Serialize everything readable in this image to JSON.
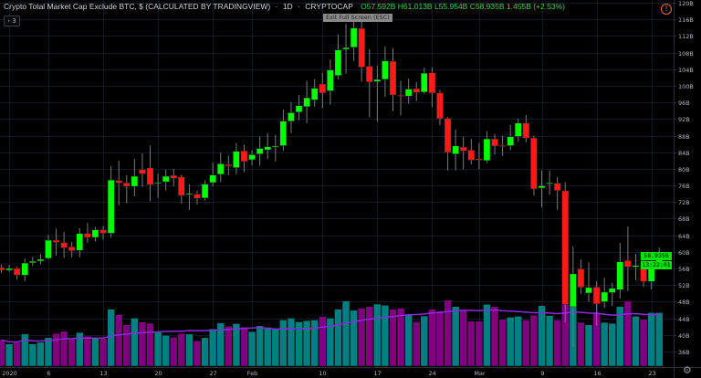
{
  "header": {
    "symbol_title": "Crypto Total Market Cap Exclude BTC, $ (CALCULATED BY TRADINGVIEW)",
    "interval": "1D",
    "exchange": "CRYPTOCAP",
    "separator": "·",
    "open": "O57.592B",
    "high": "H61.013B",
    "low": "L55.954B",
    "close": "C58.935B",
    "change": "1.455B (+2.53%)",
    "collapse_label": "› 3",
    "tooltip": "Exit Full Screen (ESC)"
  },
  "price_tags": {
    "last_price": "58.935B",
    "countdown": "13:22:01"
  },
  "icons": {
    "alert": "alert-circle-icon",
    "settings": "gear-icon"
  },
  "colors": {
    "background": "#000000",
    "up_candle": "#00ff00",
    "down_candle": "#ff1a1a",
    "up_volume": "#008080",
    "down_volume": "#800080",
    "volume_ma": "#8a2be2",
    "grid": "#0d1a28",
    "axis_text": "#b2b5be"
  },
  "chart_data": {
    "type": "candlestick",
    "unit": "B",
    "ylim": [
      34,
      121
    ],
    "yticks": [
      "120B",
      "116B",
      "112B",
      "108B",
      "104B",
      "100B",
      "96B",
      "92B",
      "88B",
      "84B",
      "80B",
      "76B",
      "72B",
      "68B",
      "64B",
      "60B",
      "56B",
      "52B",
      "48B",
      "44B",
      "40B",
      "36B"
    ],
    "ytick_values": [
      120,
      116,
      112,
      108,
      104,
      100,
      96,
      92,
      88,
      84,
      80,
      76,
      72,
      68,
      64,
      60,
      56,
      52,
      48,
      44,
      40,
      36
    ],
    "start_date": "2019-12-31",
    "xticks": [
      {
        "label": "2020",
        "day": 1
      },
      {
        "label": "6",
        "day": 6
      },
      {
        "label": "13",
        "day": 13
      },
      {
        "label": "20",
        "day": 20
      },
      {
        "label": "27",
        "day": 27
      },
      {
        "label": "Feb",
        "day": 32
      },
      {
        "label": "10",
        "day": 41
      },
      {
        "label": "17",
        "day": 48
      },
      {
        "label": "24",
        "day": 55
      },
      {
        "label": "Mar",
        "day": 61
      },
      {
        "label": "9",
        "day": 69
      },
      {
        "label": "16",
        "day": 76
      },
      {
        "label": "23",
        "day": 83
      }
    ],
    "grid": true,
    "ohlc": [
      [
        56.2,
        56.9,
        54.9,
        55.6
      ],
      [
        55.6,
        56.9,
        55.2,
        56.0
      ],
      [
        56.0,
        56.4,
        53.3,
        54.4
      ],
      [
        54.4,
        58.4,
        52.9,
        57.3
      ],
      [
        57.4,
        58.8,
        56.6,
        57.7
      ],
      [
        57.8,
        59.5,
        57.0,
        58.2
      ],
      [
        58.5,
        64.1,
        58.2,
        62.8
      ],
      [
        62.8,
        65.6,
        59.1,
        62.3
      ],
      [
        62.2,
        64.8,
        58.5,
        61.0
      ],
      [
        61.2,
        62.4,
        58.7,
        60.3
      ],
      [
        60.4,
        65.7,
        58.7,
        64.4
      ],
      [
        64.4,
        67.0,
        62.2,
        63.5
      ],
      [
        63.5,
        66.0,
        62.5,
        65.3
      ],
      [
        65.3,
        66.2,
        63.0,
        64.5
      ],
      [
        64.5,
        80.7,
        63.4,
        77.3
      ],
      [
        77.2,
        82.0,
        71.2,
        76.6
      ],
      [
        76.6,
        78.5,
        71.7,
        75.8
      ],
      [
        75.8,
        82.4,
        73.4,
        78.2
      ],
      [
        79.8,
        83.7,
        75.6,
        78.8
      ],
      [
        80.2,
        85.6,
        72.2,
        76.2
      ],
      [
        76.5,
        78.9,
        73.0,
        76.7
      ],
      [
        76.9,
        79.8,
        74.8,
        78.2
      ],
      [
        78.4,
        80.0,
        75.8,
        77.7
      ],
      [
        78.0,
        78.6,
        71.6,
        73.6
      ],
      [
        73.9,
        76.3,
        70.1,
        74.0
      ],
      [
        73.9,
        74.8,
        71.4,
        72.9
      ],
      [
        73.0,
        77.2,
        72.4,
        76.3
      ],
      [
        76.7,
        81.5,
        75.8,
        78.5
      ],
      [
        78.7,
        83.9,
        76.8,
        81.2
      ],
      [
        81.0,
        83.2,
        78.5,
        80.7
      ],
      [
        80.3,
        86.2,
        78.7,
        84.2
      ],
      [
        84.3,
        85.8,
        79.2,
        81.8
      ],
      [
        82.2,
        84.5,
        80.8,
        83.4
      ],
      [
        83.6,
        87.8,
        80.7,
        84.9
      ],
      [
        84.6,
        88.6,
        82.4,
        85.3
      ],
      [
        85.3,
        88.2,
        81.8,
        85.5
      ],
      [
        85.6,
        94.3,
        84.4,
        91.5
      ],
      [
        91.5,
        96.1,
        88.6,
        93.5
      ],
      [
        93.7,
        97.8,
        91.7,
        95.2
      ],
      [
        95.0,
        101.2,
        91.0,
        97.1
      ],
      [
        96.6,
        101.6,
        95.0,
        99.4
      ],
      [
        100.4,
        103.1,
        94.6,
        98.3
      ],
      [
        98.8,
        106.4,
        95.4,
        103.8
      ],
      [
        102.5,
        112.4,
        101.6,
        108.6
      ],
      [
        108.8,
        114.9,
        102.9,
        109.2
      ],
      [
        109.3,
        115.7,
        106.0,
        113.9
      ],
      [
        113.8,
        116.3,
        101.0,
        104.5
      ],
      [
        104.7,
        108.8,
        92.4,
        100.9
      ],
      [
        101.0,
        104.9,
        91.3,
        101.5
      ],
      [
        101.6,
        109.5,
        97.3,
        106.0
      ],
      [
        105.9,
        109.1,
        93.9,
        97.8
      ],
      [
        97.7,
        101.2,
        92.9,
        97.5
      ],
      [
        97.5,
        101.7,
        95.7,
        99.2
      ],
      [
        99.3,
        100.9,
        96.3,
        98.4
      ],
      [
        98.5,
        104.4,
        98.1,
        103.0
      ],
      [
        103.1,
        104.5,
        94.9,
        98.3
      ],
      [
        98.3,
        99.0,
        90.5,
        92.1
      ],
      [
        92.1,
        92.5,
        79.6,
        84.0
      ],
      [
        83.6,
        89.5,
        79.6,
        85.5
      ],
      [
        85.2,
        87.7,
        79.9,
        84.3
      ],
      [
        84.5,
        87.2,
        81.1,
        82.1
      ],
      [
        82.4,
        86.2,
        79.9,
        82.1
      ],
      [
        82.0,
        89.1,
        81.4,
        87.2
      ],
      [
        87.2,
        88.4,
        83.4,
        85.5
      ],
      [
        85.6,
        88.0,
        83.1,
        85.5
      ],
      [
        85.6,
        90.6,
        84.5,
        87.7
      ],
      [
        87.8,
        92.1,
        86.6,
        91.0
      ],
      [
        91.0,
        93.0,
        86.4,
        87.4
      ],
      [
        87.4,
        88.0,
        73.6,
        75.2
      ],
      [
        75.4,
        79.6,
        70.7,
        75.9
      ],
      [
        76.5,
        79.6,
        73.7,
        76.6
      ],
      [
        76.5,
        78.0,
        70.1,
        74.8
      ],
      [
        74.7,
        76.8,
        43.0,
        47.4
      ],
      [
        46.8,
        61.3,
        37.1,
        54.7
      ],
      [
        55.9,
        58.2,
        49.9,
        51.5
      ],
      [
        50.1,
        57.5,
        48.0,
        51.4
      ],
      [
        51.5,
        52.9,
        42.2,
        47.5
      ],
      [
        48.0,
        53.8,
        46.5,
        50.3
      ],
      [
        50.2,
        52.5,
        47.0,
        51.2
      ],
      [
        50.9,
        62.2,
        48.8,
        57.6
      ],
      [
        57.9,
        66.1,
        50.6,
        56.4
      ],
      [
        56.4,
        59.5,
        53.2,
        56.7
      ],
      [
        56.8,
        59.2,
        51.6,
        52.9
      ],
      [
        52.9,
        59.7,
        51.0,
        57.6
      ],
      [
        57.592,
        61.013,
        55.954,
        58.935
      ]
    ],
    "volume_relative": [
      86,
      73,
      78,
      105,
      73,
      78,
      93,
      107,
      114,
      91,
      110,
      98,
      91,
      90,
      186,
      168,
      135,
      157,
      144,
      140,
      111,
      101,
      95,
      107,
      105,
      83,
      93,
      122,
      141,
      131,
      139,
      128,
      113,
      132,
      127,
      122,
      151,
      157,
      145,
      149,
      151,
      162,
      157,
      186,
      213,
      183,
      189,
      195,
      203,
      199,
      186,
      189,
      167,
      145,
      164,
      186,
      180,
      216,
      195,
      181,
      147,
      147,
      202,
      195,
      153,
      160,
      163,
      151,
      167,
      198,
      165,
      151,
      218,
      203,
      143,
      135,
      175,
      143,
      140,
      195,
      213,
      163,
      153,
      175,
      175
    ],
    "volume_ma_period": 20
  }
}
